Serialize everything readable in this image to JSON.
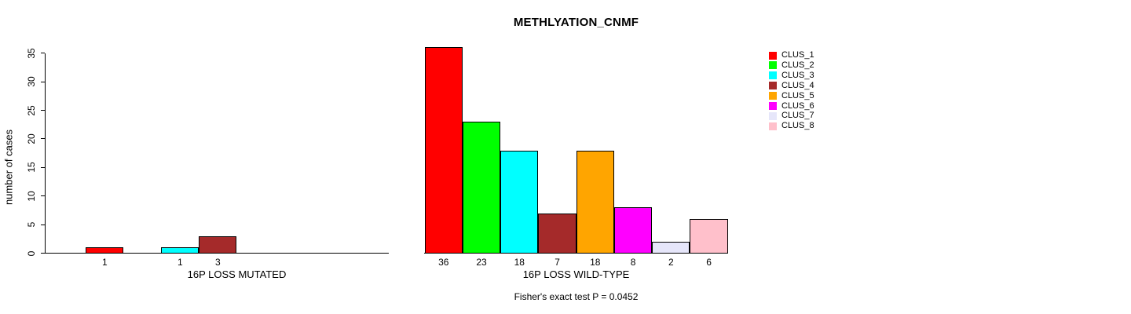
{
  "chart_data": {
    "type": "bar",
    "title": "METHLYATION_CNMF",
    "ylabel": "number of cases",
    "ylim": [
      0,
      35
    ],
    "yticks": [
      0,
      5,
      10,
      15,
      20,
      25,
      30,
      35
    ],
    "categories": [
      "CLUS_1",
      "CLUS_2",
      "CLUS_3",
      "CLUS_4",
      "CLUS_5",
      "CLUS_6",
      "CLUS_7",
      "CLUS_8"
    ],
    "colors": [
      "#FF0000",
      "#00FF00",
      "#00FFFF",
      "#A52A2A",
      "#FFA500",
      "#FF00FF",
      "#E6E6FA",
      "#FFC0CB"
    ],
    "bar_border_color": "#000000",
    "grid": "off",
    "groups": [
      {
        "label": "16P LOSS MUTATED",
        "values": [
          1,
          0,
          1,
          3,
          0,
          0,
          0,
          0
        ]
      },
      {
        "label": "16P LOSS WILD-TYPE",
        "values": [
          36,
          23,
          18,
          7,
          18,
          8,
          2,
          6
        ]
      }
    ],
    "footnote": "Fisher's exact test P = 0.0452",
    "legend": {
      "position": "right",
      "entries": [
        {
          "label": "CLUS_1",
          "color": "#FF0000"
        },
        {
          "label": "CLUS_2",
          "color": "#00FF00"
        },
        {
          "label": "CLUS_3",
          "color": "#00FFFF"
        },
        {
          "label": "CLUS_4",
          "color": "#A52A2A"
        },
        {
          "label": "CLUS_5",
          "color": "#FFA500"
        },
        {
          "label": "CLUS_6",
          "color": "#FF00FF"
        },
        {
          "label": "CLUS_7",
          "color": "#E6E6FA"
        },
        {
          "label": "CLUS_8",
          "color": "#FFC0CB"
        }
      ]
    }
  }
}
